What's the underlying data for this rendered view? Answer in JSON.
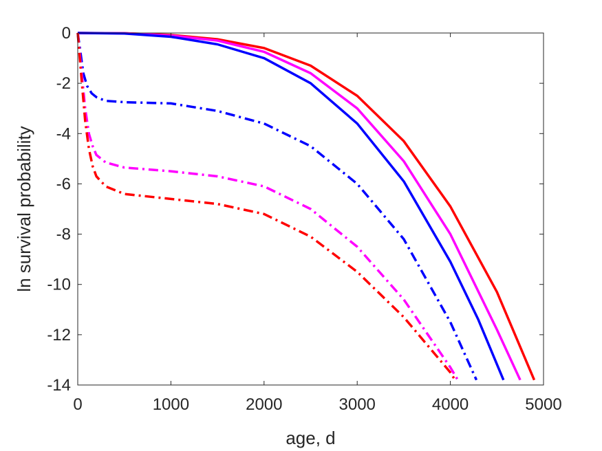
{
  "chart_data": {
    "type": "line",
    "title": "",
    "xlabel": "age, d",
    "ylabel": "ln survival probability",
    "xlim": [
      0,
      5000
    ],
    "ylim": [
      -14,
      0
    ],
    "xticks": [
      0,
      1000,
      2000,
      3000,
      4000,
      5000
    ],
    "yticks": [
      0,
      -2,
      -4,
      -6,
      -8,
      -10,
      -12,
      -14
    ],
    "xtick_labels": [
      "0",
      "1000",
      "2000",
      "3000",
      "4000",
      "5000"
    ],
    "ytick_labels": [
      "0",
      "-2",
      "-4",
      "-6",
      "-8",
      "-10",
      "-12",
      "-14"
    ],
    "grid": false,
    "legend": "none",
    "series": [
      {
        "color": "#ff0000",
        "style": "solid",
        "x": [
          0,
          500,
          1000,
          1500,
          2000,
          2500,
          3000,
          3500,
          4000,
          4500,
          4900
        ],
        "y": [
          0,
          -0.01,
          -0.08,
          -0.25,
          -0.6,
          -1.3,
          -2.5,
          -4.3,
          -6.9,
          -10.3,
          -13.8
        ]
      },
      {
        "color": "#ff00ff",
        "style": "solid",
        "x": [
          0,
          500,
          1000,
          1500,
          2000,
          2500,
          3000,
          3500,
          4000,
          4500,
          4750
        ],
        "y": [
          0,
          -0.01,
          -0.1,
          -0.3,
          -0.75,
          -1.6,
          -3.0,
          -5.1,
          -8.0,
          -11.8,
          -13.8
        ]
      },
      {
        "color": "#0000ff",
        "style": "solid",
        "x": [
          0,
          500,
          1000,
          1500,
          2000,
          2500,
          3000,
          3500,
          4000,
          4300,
          4570
        ],
        "y": [
          0,
          -0.02,
          -0.15,
          -0.45,
          -1.0,
          -2.0,
          -3.6,
          -5.9,
          -9.1,
          -11.4,
          -13.8
        ]
      },
      {
        "color": "#0000ff",
        "style": "dashdot",
        "x": [
          0,
          30,
          60,
          100,
          150,
          200,
          300,
          500,
          1000,
          1500,
          2000,
          2500,
          3000,
          3500,
          4000,
          4280
        ],
        "y": [
          0,
          -0.8,
          -1.6,
          -2.1,
          -2.4,
          -2.55,
          -2.7,
          -2.75,
          -2.8,
          -3.1,
          -3.6,
          -4.5,
          -6.0,
          -8.2,
          -11.5,
          -13.8
        ]
      },
      {
        "color": "#ff00ff",
        "style": "dashdot",
        "x": [
          0,
          40,
          80,
          120,
          160,
          200,
          300,
          500,
          1000,
          1500,
          2000,
          2500,
          3000,
          3500,
          4000,
          4080
        ],
        "y": [
          0,
          -1.5,
          -3.0,
          -4.0,
          -4.5,
          -4.85,
          -5.15,
          -5.35,
          -5.5,
          -5.7,
          -6.1,
          -7.0,
          -8.5,
          -10.6,
          -13.3,
          -13.8
        ]
      },
      {
        "color": "#ff0000",
        "style": "dashdot",
        "x": [
          0,
          40,
          80,
          120,
          160,
          200,
          300,
          500,
          1000,
          1500,
          2000,
          2500,
          3000,
          3500,
          4000,
          4050
        ],
        "y": [
          0,
          -1.8,
          -3.5,
          -4.6,
          -5.3,
          -5.7,
          -6.1,
          -6.4,
          -6.6,
          -6.8,
          -7.2,
          -8.1,
          -9.5,
          -11.3,
          -13.5,
          -13.8
        ]
      }
    ]
  }
}
